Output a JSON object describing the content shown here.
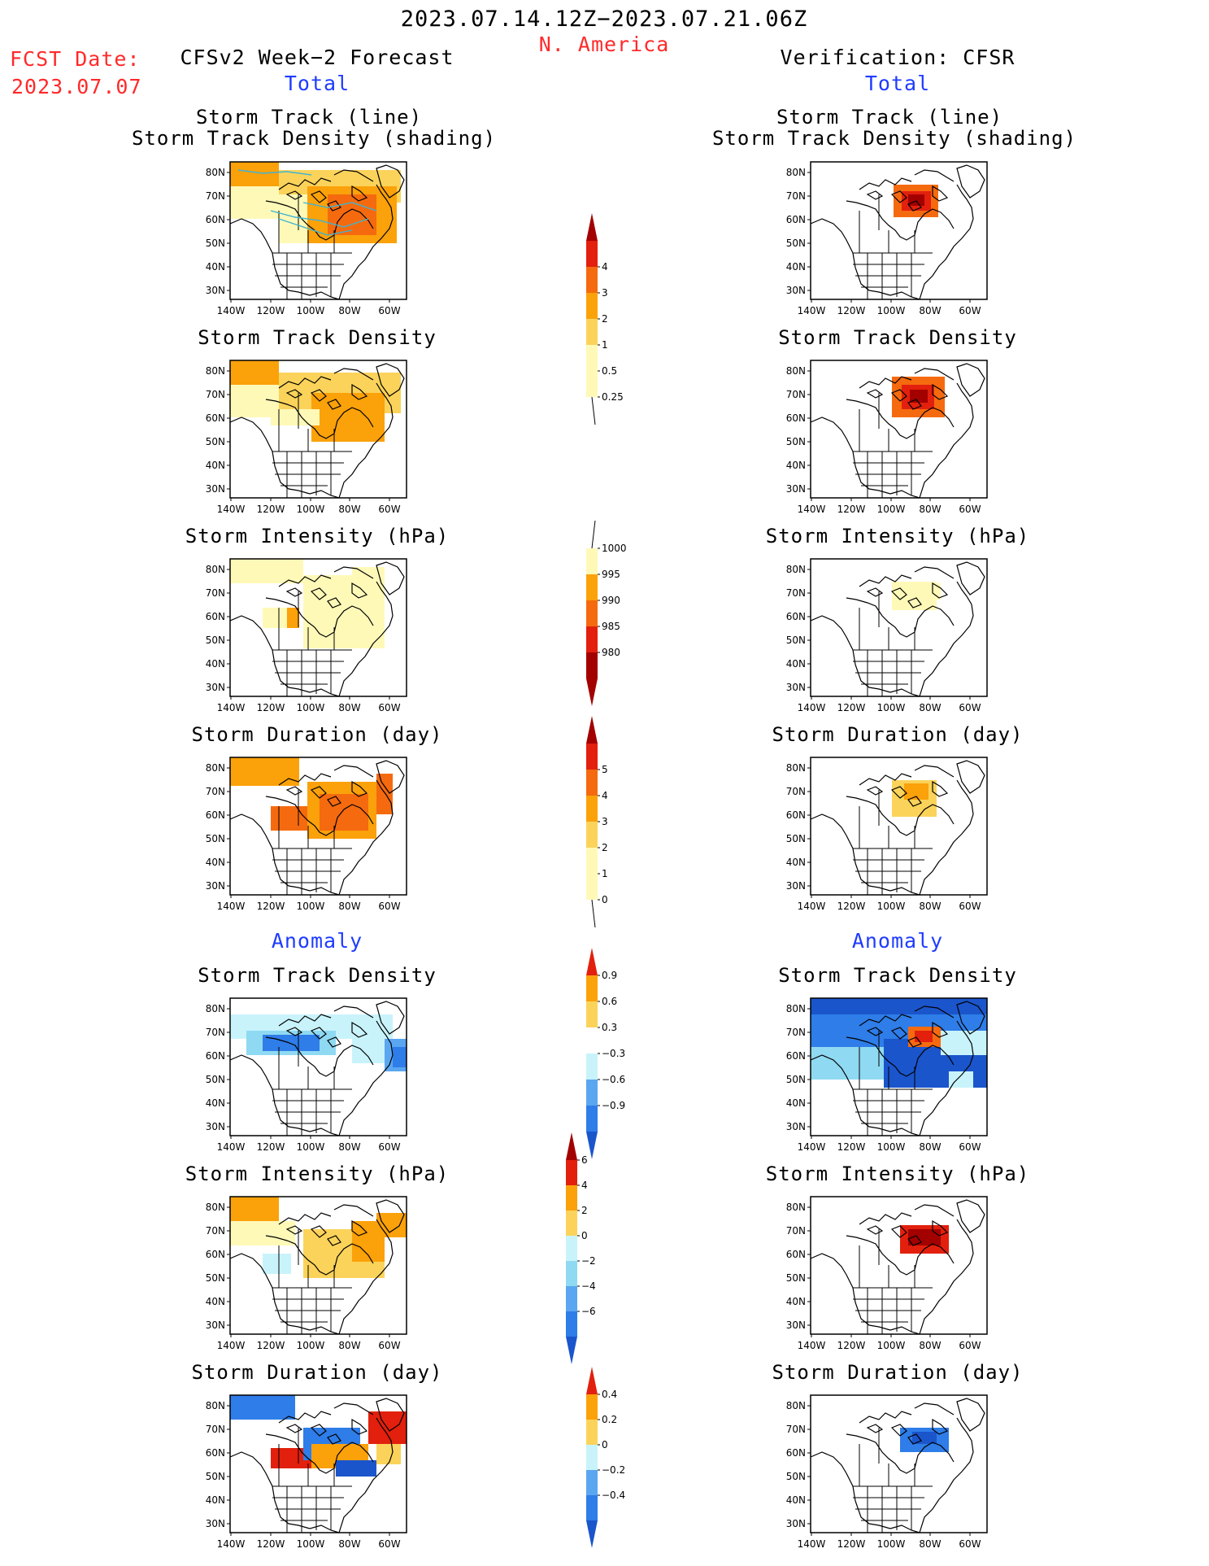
{
  "header": {
    "date_range": "2023.07.14.12Z−2023.07.21.06Z",
    "region": "N. America",
    "fcst_label": "FCST Date:",
    "fcst_date": "2023.07.07",
    "left_title": "CFSv2 Week−2 Forecast",
    "right_title": "Verification: CFSR",
    "left_subtitle": "Total",
    "right_subtitle": "Total",
    "anomaly_left": "Anomaly",
    "anomaly_right": "Anomaly"
  },
  "axes": {
    "lat_labels": [
      "80N",
      "70N",
      "60N",
      "50N",
      "40N",
      "30N"
    ],
    "lon_labels": [
      "140W",
      "120W",
      "100W",
      "80W",
      "60W"
    ]
  },
  "colors": {
    "pos": [
      "#fff9b8",
      "#fbd35a",
      "#fba10a",
      "#f56a0f",
      "#e2200d",
      "#a30000"
    ],
    "neg": [
      "#c8f3fb",
      "#8fd9f2",
      "#5aa6f0",
      "#2e7de8",
      "#1a55cc"
    ],
    "track_line": "#40b4d0"
  },
  "panel_titles": {
    "track_line": "Storm Track (line)",
    "track_density_shading": "Storm Track Density (shading)",
    "track_density": "Storm Track Density",
    "intensity": "Storm Intensity (hPa)",
    "duration": "Storm Duration (day)"
  },
  "colorbars": {
    "density": {
      "labels": [
        "4",
        "3",
        "2",
        "1",
        "0.5",
        "0.25"
      ]
    },
    "intensity": {
      "labels": [
        "1000",
        "995",
        "990",
        "985",
        "980"
      ]
    },
    "duration": {
      "labels": [
        "5",
        "4",
        "3",
        "2",
        "1",
        "0"
      ]
    },
    "anom_density": {
      "labels": [
        "0.9",
        "0.6",
        "0.3",
        "−0.3",
        "−0.6",
        "−0.9"
      ]
    },
    "anom_intensity": {
      "labels": [
        "6",
        "4",
        "2",
        "0",
        "−2",
        "−4",
        "−6"
      ]
    },
    "anom_duration": {
      "labels": [
        "0.4",
        "0.2",
        "0",
        "−0.2",
        "−0.4"
      ]
    }
  }
}
